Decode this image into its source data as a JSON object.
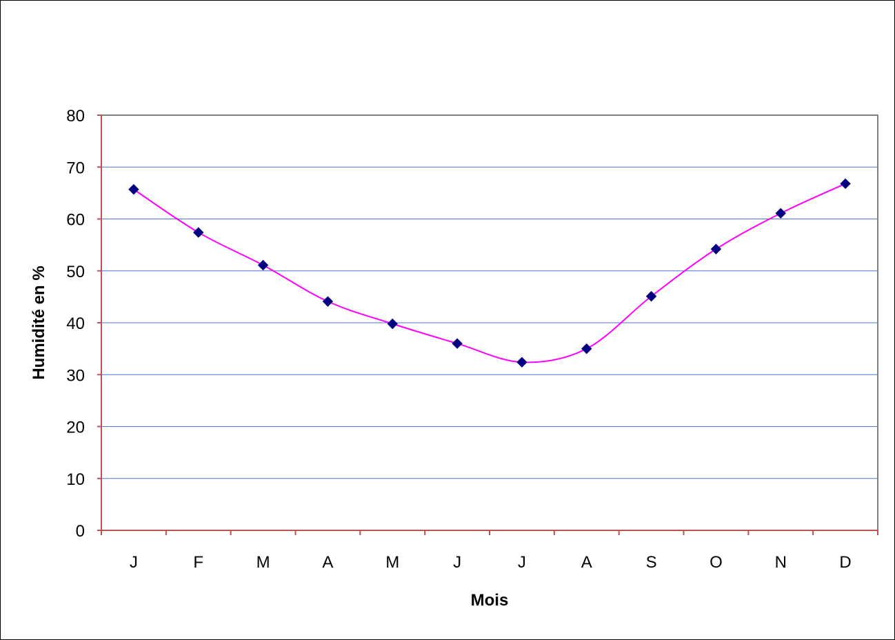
{
  "chart_data": {
    "type": "line",
    "title": "",
    "xlabel": "Mois",
    "ylabel": "Humidité en %",
    "categories": [
      "J",
      "F",
      "M",
      "A",
      "M",
      "J",
      "J",
      "A",
      "S",
      "O",
      "N",
      "D"
    ],
    "series": [
      {
        "values": [
          65.7,
          57.4,
          51.1,
          44.1,
          39.8,
          36.0,
          32.4,
          35.0,
          45.1,
          54.2,
          61.1,
          66.8
        ],
        "line_color": "#ff00ff",
        "marker_color": "#000080",
        "marker": "diamond"
      }
    ],
    "ylim": [
      0,
      80
    ],
    "yticks": [
      "0",
      "10",
      "20",
      "30",
      "40",
      "50",
      "60",
      "70",
      "80"
    ],
    "grid": true,
    "grid_color": "#4a6fd6",
    "legend": "none",
    "axis_color": "#c0504d"
  }
}
